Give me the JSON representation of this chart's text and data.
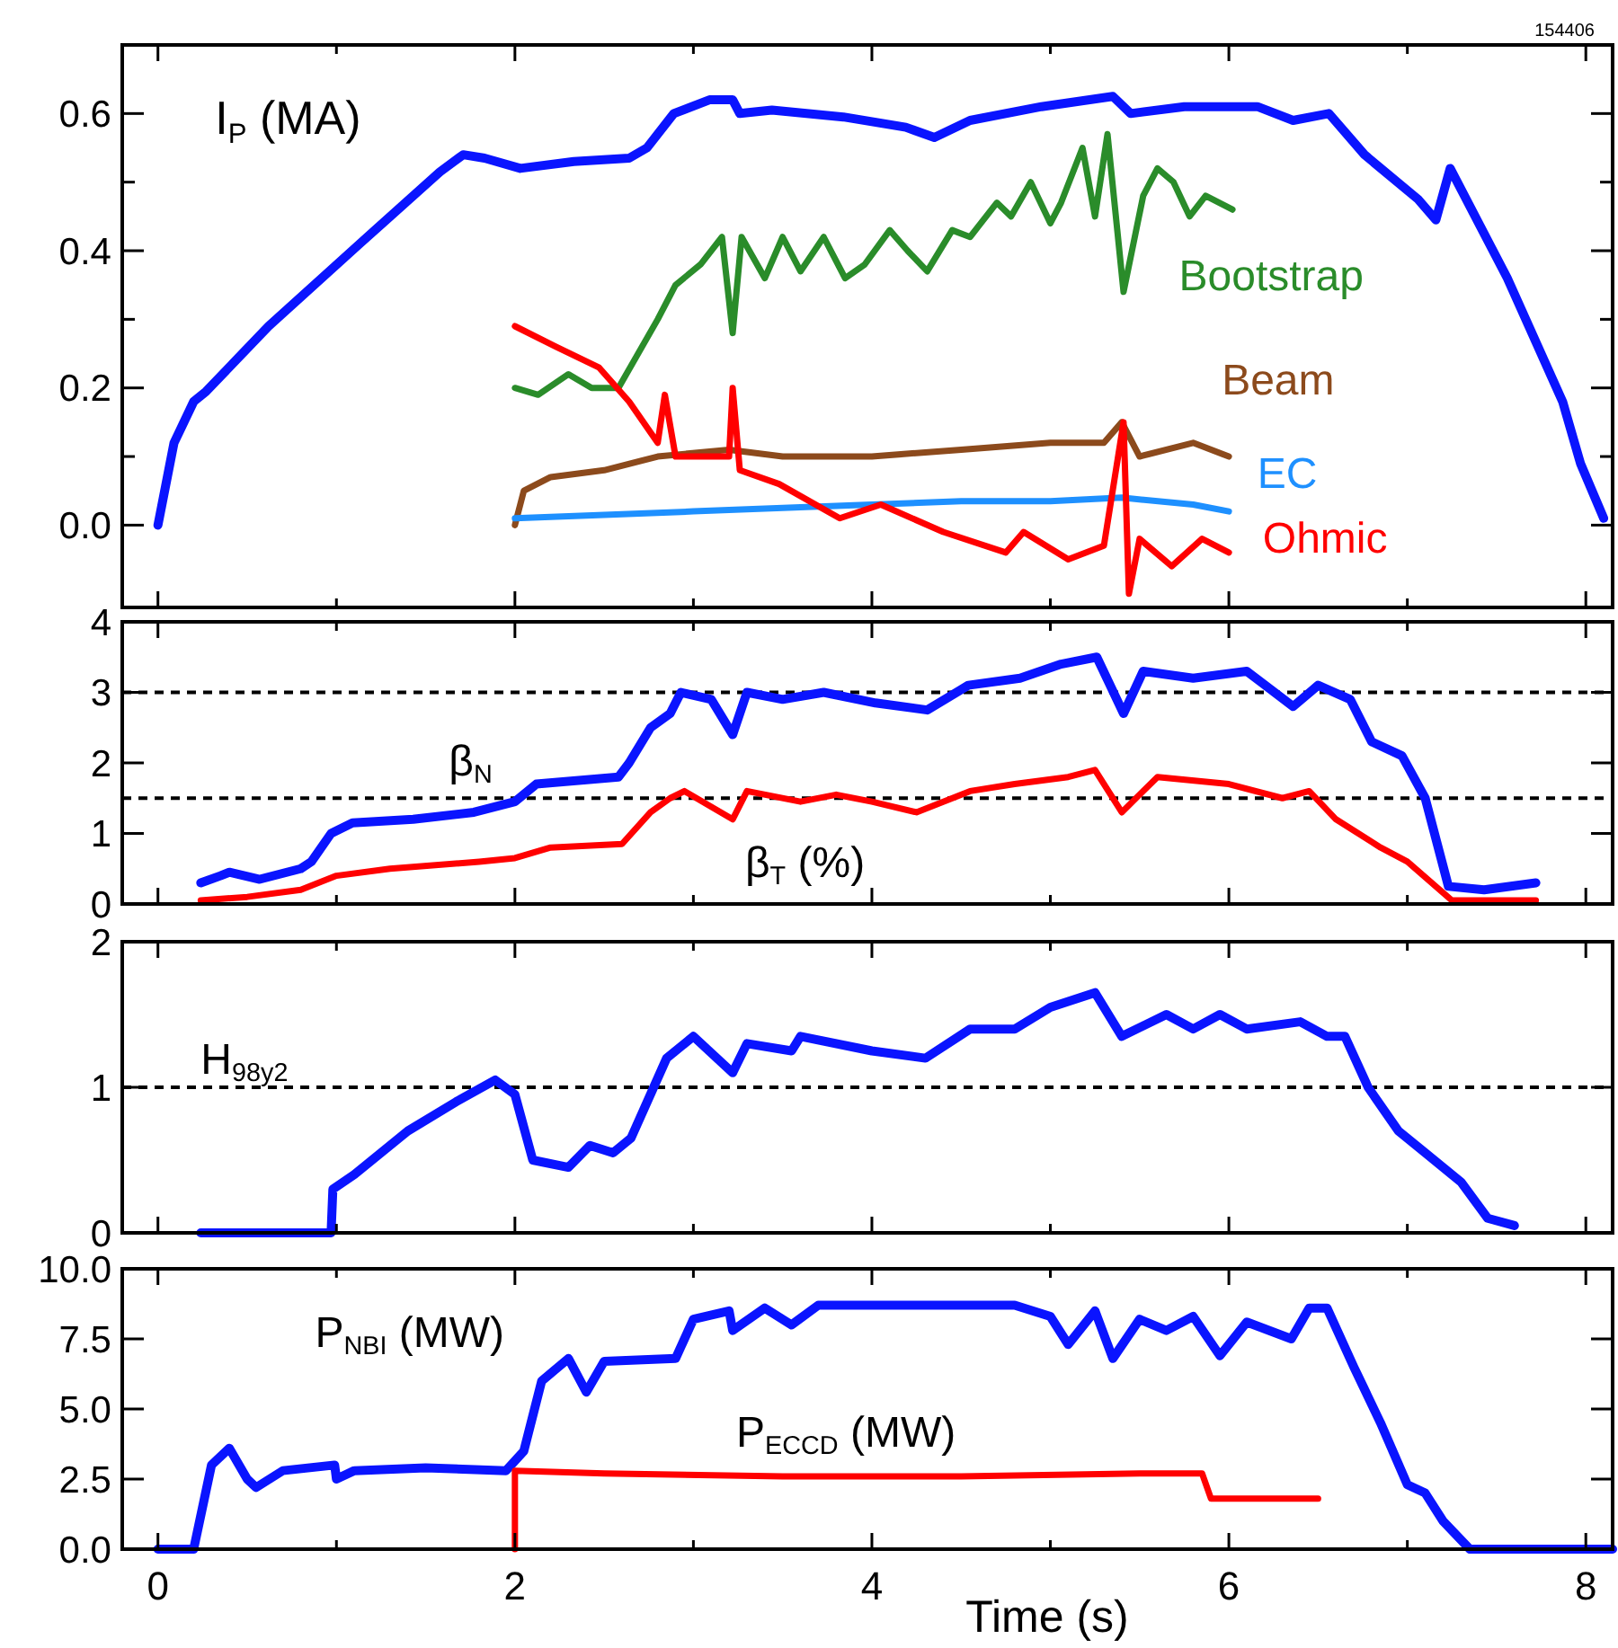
{
  "chart_data": [
    {
      "type": "line",
      "annotations": [
        "154406"
      ],
      "xlim": [
        -0.2,
        8.15
      ],
      "xticks": [
        0,
        {
          "value": 1,
          "label": null
        },
        2,
        {
          "value": 3,
          "label": null
        },
        4,
        {
          "value": 5,
          "label": null
        },
        6,
        {
          "value": 7,
          "label": null
        },
        8
      ],
      "ylim": [
        -0.12,
        0.7
      ],
      "yticks": [
        {
          "value": 0,
          "label": "0.0"
        },
        {
          "value": 0.1,
          "label": null
        },
        0.2,
        {
          "value": 0.3,
          "label": null
        },
        0.4,
        {
          "value": 0.5,
          "label": null
        },
        0.6
      ],
      "tick_labels": "y",
      "series": [
        {
          "name": "I$_{P}$ (MA)",
          "color": "#0a14ff",
          "x": [
            0,
            0.09,
            0.2,
            0.27,
            0.62,
            1.13,
            1.58,
            1.71,
            1.83,
            2.03,
            2.33,
            2.64,
            2.74,
            2.89,
            3.09,
            3.22,
            3.26,
            3.44,
            3.84,
            4.19,
            4.35,
            4.55,
            4.95,
            5.35,
            5.45,
            5.75,
            6.16,
            6.36,
            6.56,
            6.76,
            7.06,
            7.16,
            7.24,
            7.56,
            7.87,
            7.97,
            8.1
          ],
          "values": [
            0,
            0.12,
            0.18,
            0.195,
            0.29,
            0.41,
            0.515,
            0.54,
            0.535,
            0.52,
            0.53,
            0.535,
            0.55,
            0.6,
            0.62,
            0.62,
            0.6,
            0.605,
            0.595,
            0.58,
            0.565,
            0.59,
            0.61,
            0.625,
            0.6,
            0.61,
            0.61,
            0.59,
            0.6,
            0.54,
            0.475,
            0.445,
            0.52,
            0.36,
            0.18,
            0.09,
            0.01
          ]
        },
        {
          "name": "Bootstrap",
          "color": "#2a8c2a",
          "x": [
            2.0,
            2.13,
            2.3,
            2.43,
            2.58,
            2.8,
            2.9,
            3.04,
            3.16,
            3.22,
            3.27,
            3.4,
            3.5,
            3.6,
            3.73,
            3.85,
            3.96,
            4.1,
            4.2,
            4.31,
            4.45,
            4.55,
            4.7,
            4.78,
            4.89,
            5.0,
            5.06,
            5.18,
            5.25,
            5.32,
            5.41,
            5.52,
            5.6,
            5.69,
            5.78,
            5.87,
            6.02
          ],
          "values": [
            0.2,
            0.19,
            0.22,
            0.2,
            0.2,
            0.3,
            0.35,
            0.38,
            0.42,
            0.28,
            0.42,
            0.36,
            0.42,
            0.37,
            0.42,
            0.36,
            0.38,
            0.43,
            0.4,
            0.37,
            0.43,
            0.42,
            0.47,
            0.45,
            0.5,
            0.44,
            0.47,
            0.55,
            0.45,
            0.57,
            0.34,
            0.48,
            0.52,
            0.5,
            0.45,
            0.48,
            0.46
          ]
        },
        {
          "name": "Beam",
          "color": "#8c4a1c",
          "x": [
            2.0,
            2.05,
            2.2,
            2.5,
            2.8,
            3.2,
            3.5,
            4.0,
            4.5,
            5.0,
            5.3,
            5.4,
            5.5,
            5.8,
            6.0
          ],
          "values": [
            0.0,
            0.05,
            0.07,
            0.08,
            0.1,
            0.11,
            0.1,
            0.1,
            0.11,
            0.12,
            0.12,
            0.15,
            0.1,
            0.12,
            0.1
          ]
        },
        {
          "name": "EC",
          "color": "#1e90ff",
          "x": [
            2.0,
            2.5,
            3.0,
            3.5,
            4.0,
            4.5,
            5.0,
            5.4,
            5.8,
            6.0
          ],
          "values": [
            0.01,
            0.015,
            0.02,
            0.025,
            0.03,
            0.035,
            0.035,
            0.04,
            0.03,
            0.02
          ]
        },
        {
          "name": "Ohmic",
          "color": "#ff0000",
          "x": [
            2.0,
            2.23,
            2.47,
            2.64,
            2.8,
            2.84,
            2.9,
            3.2,
            3.22,
            3.26,
            3.48,
            3.82,
            4.05,
            4.4,
            4.75,
            4.85,
            5.1,
            5.3,
            5.41,
            5.44,
            5.5,
            5.68,
            5.85,
            6.0
          ],
          "values": [
            0.29,
            0.26,
            0.23,
            0.18,
            0.12,
            0.19,
            0.1,
            0.1,
            0.2,
            0.08,
            0.06,
            0.01,
            0.03,
            -0.01,
            -0.04,
            -0.01,
            -0.05,
            -0.03,
            0.15,
            -0.1,
            -0.02,
            -0.06,
            -0.02,
            -0.04
          ]
        }
      ]
    },
    {
      "type": "line",
      "xlim": [
        -0.2,
        8.15
      ],
      "xticks": [
        0,
        {
          "value": 1,
          "label": null
        },
        2,
        {
          "value": 3,
          "label": null
        },
        4,
        {
          "value": 5,
          "label": null
        },
        6,
        {
          "value": 7,
          "label": null
        },
        8
      ],
      "ylim": [
        0,
        4
      ],
      "yticks": [
        0,
        1,
        2,
        3,
        4
      ],
      "tick_labels": "y",
      "ref_lines": [
        {
          "axis": "y",
          "value": 3,
          "color": "#000000",
          "line_style": "dashed"
        },
        {
          "axis": "y",
          "value": 1.5,
          "color": "#000000",
          "line_style": "dashed"
        }
      ],
      "series": [
        {
          "name": "β$_{N}$",
          "color": "#0a14ff",
          "x": [
            0.24,
            0.35,
            0.4,
            0.57,
            0.8,
            0.86,
            0.97,
            1.09,
            1.43,
            1.77,
            2.0,
            2.12,
            2.58,
            2.64,
            2.76,
            2.87,
            2.93,
            3.1,
            3.22,
            3.3,
            3.5,
            3.73,
            4.02,
            4.31,
            4.54,
            4.83,
            5.06,
            5.26,
            5.41,
            5.52,
            5.8,
            6.1,
            6.36,
            6.5,
            6.68,
            6.8,
            6.97,
            7.1,
            7.23,
            7.43,
            7.72
          ],
          "values": [
            0.3,
            0.4,
            0.45,
            0.35,
            0.5,
            0.6,
            1.0,
            1.15,
            1.2,
            1.3,
            1.45,
            1.7,
            1.8,
            2.0,
            2.5,
            2.7,
            3.0,
            2.9,
            2.4,
            3.0,
            2.9,
            3.0,
            2.85,
            2.75,
            3.1,
            3.2,
            3.4,
            3.5,
            2.7,
            3.3,
            3.2,
            3.3,
            2.8,
            3.1,
            2.9,
            2.3,
            2.1,
            1.5,
            0.25,
            0.2,
            0.3
          ]
        },
        {
          "name": "β$_{T}$ (%)",
          "color": "#ff0000",
          "x": [
            0.24,
            0.5,
            0.8,
            1.0,
            1.3,
            1.8,
            2.0,
            2.2,
            2.6,
            2.76,
            2.87,
            2.95,
            3.22,
            3.3,
            3.6,
            3.8,
            4.0,
            4.25,
            4.55,
            4.8,
            5.1,
            5.25,
            5.4,
            5.6,
            6.0,
            6.3,
            6.45,
            6.6,
            6.85,
            7.0,
            7.25,
            7.72
          ],
          "values": [
            0.05,
            0.1,
            0.2,
            0.4,
            0.5,
            0.6,
            0.65,
            0.8,
            0.85,
            1.3,
            1.5,
            1.6,
            1.2,
            1.6,
            1.45,
            1.55,
            1.45,
            1.3,
            1.6,
            1.7,
            1.8,
            1.9,
            1.3,
            1.8,
            1.7,
            1.5,
            1.6,
            1.2,
            0.8,
            0.6,
            0.05,
            0.05
          ]
        }
      ]
    },
    {
      "type": "line",
      "xlim": [
        -0.2,
        8.15
      ],
      "xticks": [
        0,
        {
          "value": 1,
          "label": null
        },
        2,
        {
          "value": 3,
          "label": null
        },
        4,
        {
          "value": 5,
          "label": null
        },
        6,
        {
          "value": 7,
          "label": null
        },
        8
      ],
      "ylim": [
        0,
        2
      ],
      "yticks": [
        0,
        1,
        2
      ],
      "tick_labels": "y",
      "ref_lines": [
        {
          "axis": "y",
          "value": 1,
          "color": "#000000",
          "line_style": "dashed"
        }
      ],
      "series": [
        {
          "name": "H$_{98y2}$",
          "color": "#0a14ff",
          "x": [
            0.24,
            0.97,
            0.98,
            1.1,
            1.4,
            1.67,
            1.89,
            2.0,
            2.1,
            2.3,
            2.42,
            2.55,
            2.65,
            2.85,
            3.0,
            3.22,
            3.3,
            3.55,
            3.6,
            4.0,
            4.3,
            4.55,
            4.8,
            5.0,
            5.25,
            5.4,
            5.65,
            5.8,
            5.95,
            6.1,
            6.4,
            6.55,
            6.65,
            6.78,
            6.95,
            7.1,
            7.3,
            7.45,
            7.6
          ],
          "values": [
            0,
            0,
            0.3,
            0.4,
            0.7,
            0.9,
            1.05,
            0.95,
            0.5,
            0.45,
            0.6,
            0.55,
            0.65,
            1.2,
            1.35,
            1.1,
            1.3,
            1.25,
            1.35,
            1.25,
            1.2,
            1.4,
            1.4,
            1.55,
            1.65,
            1.35,
            1.5,
            1.4,
            1.5,
            1.4,
            1.45,
            1.35,
            1.35,
            1.0,
            0.7,
            0.55,
            0.35,
            0.1,
            0.05
          ]
        }
      ]
    },
    {
      "type": "line",
      "xlabel": "Time (s)",
      "xlim": [
        -0.2,
        8.15
      ],
      "xticks": [
        0,
        {
          "value": 1,
          "label": null
        },
        2,
        {
          "value": 3,
          "label": null
        },
        4,
        {
          "value": 5,
          "label": null
        },
        6,
        {
          "value": 7,
          "label": null
        },
        8
      ],
      "ylim": [
        0,
        10
      ],
      "yticks": [
        {
          "value": 0,
          "label": "0.0"
        },
        {
          "value": 2.5,
          "label": "2.5"
        },
        {
          "value": 5,
          "label": "5.0"
        },
        {
          "value": 7.5,
          "label": "7.5"
        },
        {
          "value": 10,
          "label": "10.0"
        }
      ],
      "series": [
        {
          "name": "P$_{NBI}$ (MW)",
          "color": "#0a14ff",
          "x": [
            0,
            0.2,
            0.3,
            0.4,
            0.5,
            0.55,
            0.7,
            0.99,
            1.0,
            1.1,
            1.5,
            1.95,
            2.05,
            2.15,
            2.3,
            2.4,
            2.5,
            2.9,
            3.0,
            3.2,
            3.22,
            3.4,
            3.55,
            3.7,
            4.0,
            4.8,
            5.0,
            5.1,
            5.25,
            5.35,
            5.5,
            5.65,
            5.8,
            5.95,
            6.1,
            6.35,
            6.45,
            6.55,
            6.7,
            6.85,
            7.0,
            7.1,
            7.2,
            7.35,
            8.15
          ],
          "values": [
            0,
            0,
            3.0,
            3.6,
            2.5,
            2.2,
            2.8,
            3.0,
            2.5,
            2.8,
            2.9,
            2.8,
            3.5,
            6.0,
            6.8,
            5.6,
            6.7,
            6.8,
            8.2,
            8.5,
            7.8,
            8.6,
            8.0,
            8.7,
            8.7,
            8.7,
            8.3,
            7.3,
            8.5,
            6.8,
            8.2,
            7.8,
            8.3,
            6.9,
            8.1,
            7.5,
            8.6,
            8.6,
            6.5,
            4.5,
            2.3,
            2.0,
            1.0,
            0,
            0
          ]
        },
        {
          "name": "P$_{ECCD}$ (MW)",
          "color": "#ff0000",
          "x": [
            2.0,
            2.0,
            2.5,
            3.5,
            4.5,
            5.5,
            5.85,
            5.9,
            6.3,
            6.5
          ],
          "values": [
            0,
            2.8,
            2.7,
            2.6,
            2.6,
            2.7,
            2.7,
            1.8,
            1.8,
            1.8
          ]
        }
      ]
    }
  ]
}
